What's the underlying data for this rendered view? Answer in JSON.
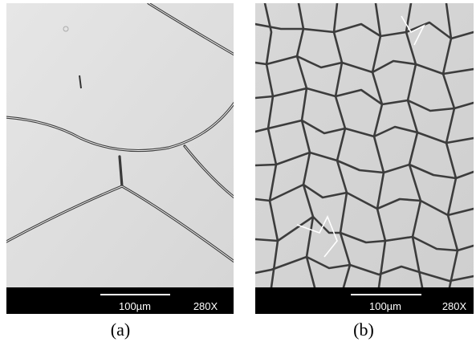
{
  "panels": [
    {
      "scale_bar": "100µm",
      "magnification": "280X",
      "caption": "(a)"
    },
    {
      "scale_bar": "100µm",
      "magnification": "280X",
      "caption": "(b)"
    }
  ]
}
